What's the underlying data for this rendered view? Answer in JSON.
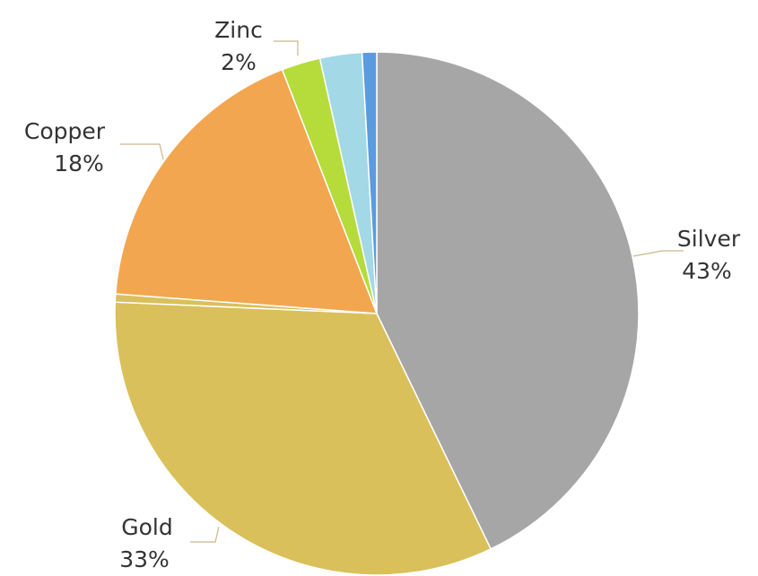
{
  "chart_data": {
    "type": "pie",
    "start_angle_deg": 0,
    "direction": "clockwise",
    "slices": [
      {
        "label": "Silver",
        "percent_label": "43%",
        "value": 43,
        "color": "#a6a6a6"
      },
      {
        "label": "Gold",
        "percent_label": "33%",
        "value": 33,
        "color": "#d9c05a"
      },
      {
        "label": "",
        "percent_label": "",
        "value": 0.5,
        "color": "#d9c05a"
      },
      {
        "label": "Copper",
        "percent_label": "18%",
        "value": 18,
        "color": "#f3a650"
      },
      {
        "label": "Zinc",
        "percent_label": "2%",
        "value": 2.4,
        "color": "#b5dc3a"
      },
      {
        "label": "",
        "percent_label": "",
        "value": 2.6,
        "color": "#a3d8e6"
      },
      {
        "label": "",
        "percent_label": "",
        "value": 0.9,
        "color": "#5b9bdf"
      }
    ]
  }
}
